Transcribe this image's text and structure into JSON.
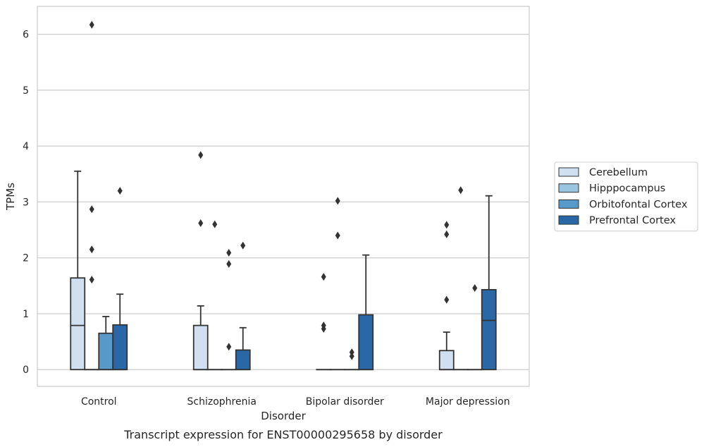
{
  "chart_data": {
    "type": "box",
    "caption": "Transcript expression for ENST00000295658 by disorder",
    "xlabel": "Disorder",
    "ylabel": "TPMs",
    "ylim": [
      -0.3,
      6.5
    ],
    "yticks": [
      0,
      1,
      2,
      3,
      4,
      5,
      6
    ],
    "grid": true,
    "legend_position": "right",
    "categories": [
      "Control",
      "Schizophrenia",
      "Bipolar disorder",
      "Major depression"
    ],
    "series": [
      {
        "name": "Cerebellum",
        "color": "#d1e0f1",
        "boxes": [
          {
            "q1": 0,
            "median": 0.79,
            "q3": 1.64,
            "whisker_low": 0,
            "whisker_high": 3.55,
            "outliers": []
          },
          {
            "q1": 0,
            "median": 0,
            "q3": 0.79,
            "whisker_low": 0,
            "whisker_high": 1.14,
            "outliers": [
              3.84,
              2.62
            ]
          },
          {
            "q1": 0,
            "median": 0,
            "q3": 0,
            "whisker_low": 0,
            "whisker_high": 0,
            "outliers": [
              1.66,
              0.79,
              0.73
            ]
          },
          {
            "q1": 0,
            "median": 0,
            "q3": 0.34,
            "whisker_low": 0,
            "whisker_high": 0.67,
            "outliers": [
              2.59,
              2.42,
              1.25
            ]
          }
        ]
      },
      {
        "name": "Hipppocampus",
        "color": "#9ac5e0",
        "boxes": [
          {
            "q1": 0,
            "median": 0,
            "q3": 0,
            "whisker_low": 0,
            "whisker_high": 0,
            "outliers": [
              6.17,
              2.87,
              2.15,
              1.61
            ]
          },
          {
            "q1": 0,
            "median": 0,
            "q3": 0,
            "whisker_low": 0,
            "whisker_high": 0,
            "outliers": [
              2.6
            ]
          },
          {
            "q1": 0,
            "median": 0,
            "q3": 0,
            "whisker_low": 0,
            "whisker_high": 0,
            "outliers": [
              3.02,
              2.4
            ]
          },
          {
            "q1": 0,
            "median": 0,
            "q3": 0,
            "whisker_low": 0,
            "whisker_high": 0,
            "outliers": [
              3.21
            ]
          }
        ]
      },
      {
        "name": "Orbitofontal Cortex",
        "color": "#5799c8",
        "boxes": [
          {
            "q1": 0,
            "median": 0,
            "q3": 0.65,
            "whisker_low": 0,
            "whisker_high": 0.95,
            "outliers": []
          },
          {
            "q1": 0,
            "median": 0,
            "q3": 0,
            "whisker_low": 0,
            "whisker_high": 0,
            "outliers": [
              2.09,
              1.89,
              0.41
            ]
          },
          {
            "q1": 0,
            "median": 0,
            "q3": 0,
            "whisker_low": 0,
            "whisker_high": 0,
            "outliers": [
              0.31,
              0.24
            ]
          },
          {
            "q1": 0,
            "median": 0,
            "q3": 0,
            "whisker_low": 0,
            "whisker_high": 0,
            "outliers": [
              1.46
            ]
          }
        ]
      },
      {
        "name": "Prefrontal Cortex",
        "color": "#2967a6",
        "boxes": [
          {
            "q1": 0,
            "median": 0,
            "q3": 0.8,
            "whisker_low": 0,
            "whisker_high": 1.35,
            "outliers": [
              3.2
            ]
          },
          {
            "q1": 0,
            "median": 0,
            "q3": 0.35,
            "whisker_low": 0,
            "whisker_high": 0.75,
            "outliers": [
              2.22
            ]
          },
          {
            "q1": 0,
            "median": 0,
            "q3": 0.98,
            "whisker_low": 0,
            "whisker_high": 2.05,
            "outliers": []
          },
          {
            "q1": 0,
            "median": 0.88,
            "q3": 1.43,
            "whisker_low": 0,
            "whisker_high": 3.11,
            "outliers": []
          }
        ]
      }
    ]
  }
}
